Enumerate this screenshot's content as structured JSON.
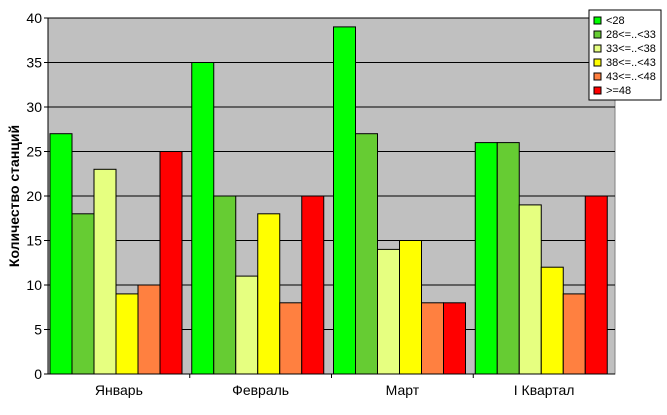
{
  "chart_data": {
    "type": "bar",
    "title": "",
    "xlabel": "",
    "ylabel": "Количество станций",
    "ylim": [
      0,
      40
    ],
    "yticks": [
      0,
      5,
      10,
      15,
      20,
      25,
      30,
      35,
      40
    ],
    "grid": true,
    "legend_position": "top-right",
    "plot_background": "#c0c0c0",
    "categories": [
      "Январь",
      "Февраль",
      "Март",
      "I Квартал"
    ],
    "series": [
      {
        "name": "<28",
        "color": "#00ff00",
        "values": [
          27,
          35,
          39,
          26
        ]
      },
      {
        "name": "28<=..<33",
        "color": "#66cc33",
        "values": [
          18,
          20,
          27,
          26
        ]
      },
      {
        "name": "33<=..<38",
        "color": "#e6ff80",
        "values": [
          23,
          11,
          14,
          19
        ]
      },
      {
        "name": "38<=..<43",
        "color": "#ffff00",
        "values": [
          9,
          18,
          15,
          12
        ]
      },
      {
        "name": "43<=..<48",
        "color": "#ff8040",
        "values": [
          10,
          8,
          8,
          9
        ]
      },
      {
        "name": ">=48",
        "color": "#ff0000",
        "values": [
          25,
          20,
          8,
          20
        ]
      }
    ]
  }
}
